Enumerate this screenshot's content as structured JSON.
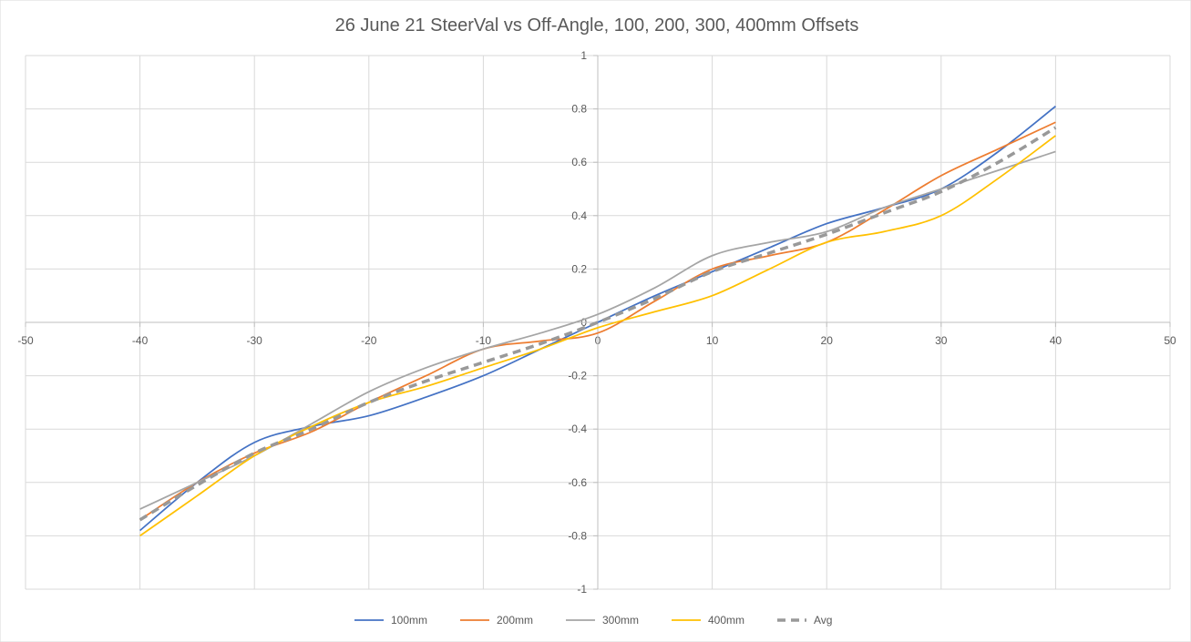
{
  "chart_data": {
    "type": "line",
    "title": "26 June 21 SteerVal vs Off-Angle, 100, 200, 300, 400mm Offsets",
    "xlabel": "",
    "ylabel": "",
    "xlim": [
      -50,
      50
    ],
    "ylim": [
      -1,
      1
    ],
    "x_ticks": [
      "-50",
      "-40",
      "-30",
      "-20",
      "-10",
      "0",
      "10",
      "20",
      "30",
      "40",
      "50"
    ],
    "y_ticks": [
      "1",
      "0.8",
      "0.6",
      "0.4",
      "0.2",
      "0",
      "-0.2",
      "-0.4",
      "-0.6",
      "-0.8",
      "-1"
    ],
    "grid": true,
    "legend_position": "bottom",
    "x": [
      -40,
      -35,
      -30,
      -25,
      -20,
      -15,
      -10,
      -5,
      0,
      5,
      10,
      15,
      20,
      25,
      30,
      35,
      40
    ],
    "series": [
      {
        "name": "100mm",
        "color": "#4472c4",
        "dashed": false,
        "values": [
          -0.78,
          -0.6,
          -0.45,
          -0.39,
          -0.35,
          -0.28,
          -0.2,
          -0.1,
          0.0,
          0.1,
          0.19,
          0.28,
          0.37,
          0.43,
          0.5,
          0.64,
          0.81
        ]
      },
      {
        "name": "200mm",
        "color": "#ed7d31",
        "dashed": false,
        "values": [
          -0.74,
          -0.6,
          -0.49,
          -0.41,
          -0.3,
          -0.2,
          -0.1,
          -0.07,
          -0.04,
          0.08,
          0.2,
          0.25,
          0.3,
          0.42,
          0.55,
          0.65,
          0.75
        ]
      },
      {
        "name": "300mm",
        "color": "#a5a5a5",
        "dashed": false,
        "values": [
          -0.7,
          -0.6,
          -0.5,
          -0.38,
          -0.26,
          -0.17,
          -0.1,
          -0.04,
          0.03,
          0.13,
          0.25,
          0.3,
          0.34,
          0.43,
          0.5,
          0.57,
          0.64
        ]
      },
      {
        "name": "400mm",
        "color": "#ffc000",
        "dashed": false,
        "values": [
          -0.8,
          -0.65,
          -0.5,
          -0.39,
          -0.3,
          -0.24,
          -0.17,
          -0.1,
          -0.02,
          0.04,
          0.1,
          0.2,
          0.3,
          0.34,
          0.4,
          0.54,
          0.7
        ]
      },
      {
        "name": "Avg",
        "color": "#999999",
        "dashed": true,
        "values": [
          -0.74,
          -0.61,
          -0.49,
          -0.4,
          -0.3,
          -0.22,
          -0.15,
          -0.08,
          0.0,
          0.09,
          0.19,
          0.26,
          0.33,
          0.41,
          0.49,
          0.6,
          0.73
        ]
      }
    ]
  }
}
